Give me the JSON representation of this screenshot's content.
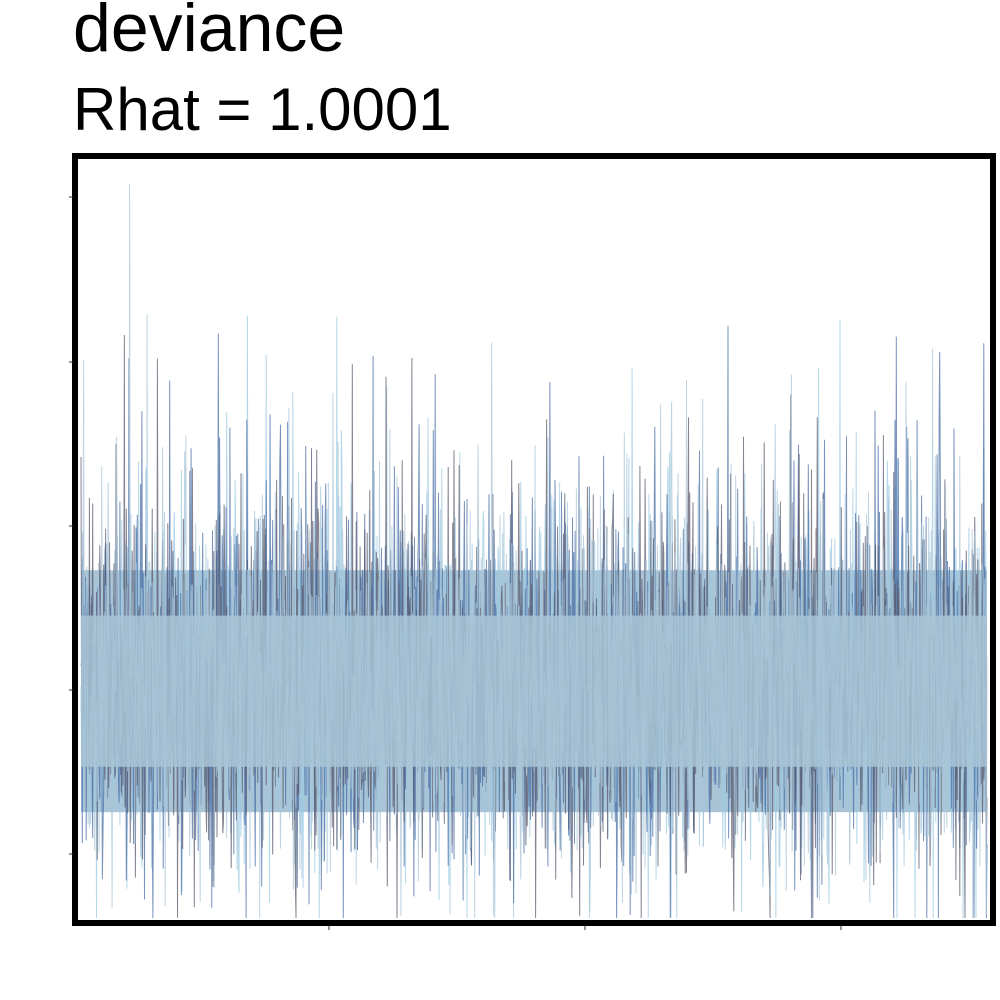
{
  "chart_data": {
    "type": "line",
    "title": "deviance",
    "subtitle": "Rhat = 1.0001",
    "xlabel": "",
    "ylabel": "",
    "grid": false,
    "legend": "none",
    "n_chains": 4,
    "n_iterations": 5000,
    "ylim": [
      0,
      1
    ],
    "y_center": 0.31,
    "y_typical_band": [
      0.14,
      0.46
    ],
    "y_extremes": [
      0.0,
      0.99
    ],
    "chain_colors": [
      "#9ecae1",
      "#4a6fa5",
      "#5a5a6e",
      "#a9c5d8"
    ],
    "fill_color": "#a8c4d6"
  }
}
